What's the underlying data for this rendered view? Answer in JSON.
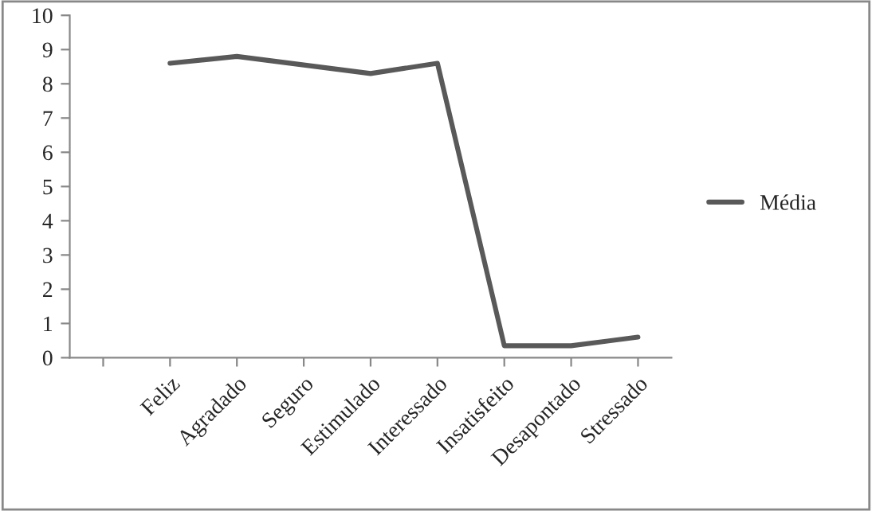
{
  "chart_data": {
    "type": "line",
    "categories": [
      null,
      "Feliz",
      "Agradado",
      "Seguro",
      "Estimulado",
      "Interessado",
      "Insatisfeito",
      "Desapontado",
      "Stressado"
    ],
    "series": [
      {
        "name": "Média",
        "color": "#595959",
        "values": [
          null,
          8.6,
          8.8,
          8.55,
          8.3,
          8.6,
          0.35,
          0.35,
          0.6
        ]
      }
    ],
    "ylim": [
      0,
      10
    ],
    "yticks": [
      0,
      1,
      2,
      3,
      4,
      5,
      6,
      7,
      8,
      9,
      10
    ],
    "legend": "right",
    "grid": false,
    "marker": "none",
    "line_style": "solid"
  }
}
